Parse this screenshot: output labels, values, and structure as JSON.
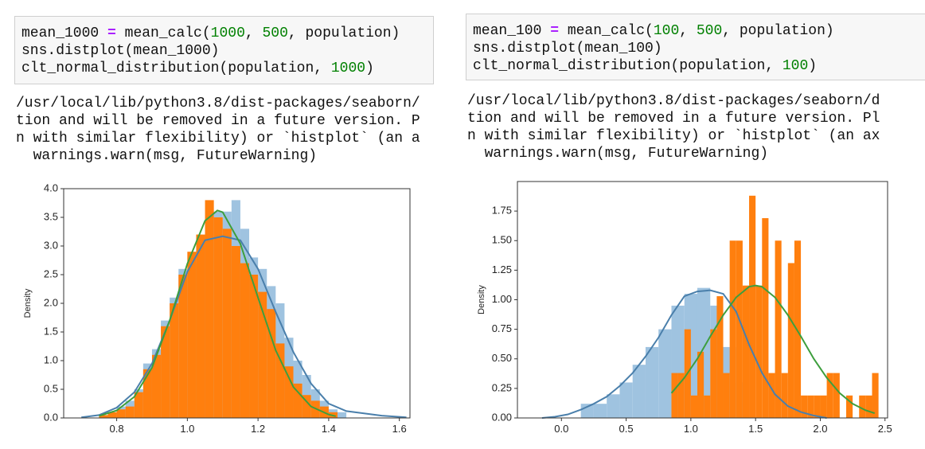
{
  "cells": [
    {
      "code": [
        [
          "mean_1000 ",
          "=",
          " mean_calc(",
          "1000",
          ", ",
          "500",
          ", population)"
        ],
        [
          "sns.distplot(mean_1000)"
        ],
        [
          "clt_normal_distribution(population, ",
          "1000",
          ")"
        ]
      ],
      "output": [
        "/usr/local/lib/python3.8/dist-packages/seaborn/",
        "tion and will be removed in a future version. P",
        "n with similar flexibility) or `histplot` (an a",
        "  warnings.warn(msg, FutureWarning)"
      ]
    },
    {
      "code": [
        [
          "mean_100 ",
          "=",
          " mean_calc(",
          "100",
          ", ",
          "500",
          ", population)"
        ],
        [
          "sns.distplot(mean_100)"
        ],
        [
          "clt_normal_distribution(population, ",
          "100",
          ")"
        ]
      ],
      "output": [
        "/usr/local/lib/python3.8/dist-packages/seaborn/d",
        "tion and will be removed in a future version. Pl",
        "n with similar flexibility) or `histplot` (an ax",
        "  warnings.warn(msg, FutureWarning)"
      ]
    }
  ],
  "chart_data": [
    {
      "type": "histogram",
      "ylabel": "Density",
      "xlim": [
        0.65,
        1.63
      ],
      "ylim": [
        0,
        4.0
      ],
      "xticks": [
        0.8,
        {
          "value": 1.0,
          "label": "1.0"
        },
        1.2,
        1.4,
        1.6
      ],
      "yticks": [
        {
          "value": 0,
          "label": "0.0"
        },
        0.5,
        {
          "value": 1.0,
          "label": "1.0"
        },
        1.5,
        {
          "value": 2.0,
          "label": "2.0"
        },
        2.5,
        {
          "value": 3.0,
          "label": "3.0"
        },
        3.5,
        {
          "value": 4.0,
          "label": "4.0"
        }
      ],
      "series": [
        {
          "color": "#9fc3e0",
          "bins": [
            0.75,
            0.775,
            0.8,
            0.825,
            0.85,
            0.875,
            0.9,
            0.925,
            0.95,
            0.975,
            1.0,
            1.025,
            1.05,
            1.075,
            1.1,
            1.125,
            1.15,
            1.175,
            1.2,
            1.225,
            1.25,
            1.275,
            1.3,
            1.325,
            1.35,
            1.375,
            1.4,
            1.425,
            1.45
          ],
          "values": [
            0.05,
            0.1,
            0.2,
            0.3,
            0.5,
            0.95,
            1.2,
            1.7,
            2.1,
            2.6,
            2.7,
            3.1,
            3.5,
            3.6,
            3.6,
            3.8,
            3.3,
            2.8,
            2.6,
            2.3,
            2.0,
            1.4,
            1.0,
            0.75,
            0.5,
            0.3,
            0.15,
            0.1
          ]
        },
        {
          "color": "#ff7f0e",
          "bins": [
            0.75,
            0.775,
            0.8,
            0.825,
            0.85,
            0.875,
            0.9,
            0.925,
            0.95,
            0.975,
            1.0,
            1.025,
            1.05,
            1.075,
            1.1,
            1.125,
            1.15,
            1.175,
            1.2,
            1.225,
            1.25,
            1.275,
            1.3,
            1.325,
            1.35,
            1.375,
            1.4,
            1.425
          ],
          "values": [
            0.05,
            0.1,
            0.15,
            0.2,
            0.45,
            0.85,
            1.1,
            1.6,
            2.0,
            2.5,
            2.9,
            3.2,
            3.8,
            3.5,
            3.3,
            3.0,
            2.7,
            2.5,
            2.2,
            1.9,
            1.3,
            0.9,
            0.6,
            0.4,
            0.3,
            0.2,
            0.1
          ]
        }
      ],
      "lines": [
        {
          "color": "#4a7fab",
          "x": [
            0.7,
            0.75,
            0.8,
            0.85,
            0.9,
            0.95,
            1.0,
            1.05,
            1.1,
            1.15,
            1.2,
            1.25,
            1.3,
            1.35,
            1.4,
            1.45,
            1.5,
            1.55,
            1.62
          ],
          "values": [
            0.01,
            0.05,
            0.18,
            0.45,
            0.95,
            1.7,
            2.55,
            3.1,
            3.17,
            3.1,
            2.6,
            1.85,
            1.15,
            0.6,
            0.25,
            0.12,
            0.08,
            0.04,
            0.01
          ]
        },
        {
          "color": "#3d9e3d",
          "x": [
            0.75,
            0.8,
            0.85,
            0.9,
            0.95,
            1.0,
            1.05,
            1.085,
            1.1,
            1.15,
            1.2,
            1.25,
            1.3,
            1.35,
            1.4,
            1.42
          ],
          "values": [
            0.035,
            0.13,
            0.37,
            0.88,
            1.7,
            2.69,
            3.44,
            3.62,
            3.59,
            3.04,
            2.1,
            1.18,
            0.54,
            0.2,
            0.06,
            0.03
          ]
        }
      ]
    },
    {
      "type": "histogram",
      "ylabel": "Density",
      "xlim": [
        -0.34,
        2.52
      ],
      "ylim": [
        0,
        2.0
      ],
      "xticks": [
        {
          "value": 0,
          "label": "0.0"
        },
        0.5,
        {
          "value": 1.0,
          "label": "1.0"
        },
        1.5,
        {
          "value": 2.0,
          "label": "2.0"
        },
        2.5
      ],
      "yticks": [
        {
          "value": 0,
          "label": "0.00"
        },
        0.25,
        {
          "value": 0.5,
          "label": "0.50"
        },
        0.75,
        {
          "value": 1.0,
          "label": "1.00"
        },
        1.25,
        {
          "value": 1.5,
          "label": "1.50"
        },
        1.75
      ],
      "series": [
        {
          "color": "#9fc3e0",
          "bins": [
            0.15,
            0.25,
            0.35,
            0.45,
            0.55,
            0.65,
            0.75,
            0.85,
            0.95,
            1.05,
            1.15,
            1.25,
            1.35,
            1.45
          ],
          "values": [
            0.12,
            0.12,
            0.2,
            0.3,
            0.45,
            0.6,
            0.75,
            0.95,
            1.05,
            1.1,
            0.95,
            0.6,
            0.3
          ]
        },
        {
          "color": "#ff7f0e",
          "bins": [
            0.85,
            0.9,
            0.95,
            1.0,
            1.05,
            1.1,
            1.15,
            1.2,
            1.25,
            1.3,
            1.35,
            1.4,
            1.45,
            1.5,
            1.55,
            1.6,
            1.65,
            1.7,
            1.75,
            1.8,
            1.85,
            1.9,
            1.95,
            2.0,
            2.05,
            2.1,
            2.15,
            2.2,
            2.25,
            2.3,
            2.35,
            2.4,
            2.45
          ],
          "values": [
            0.38,
            0.38,
            0.75,
            0.19,
            0.56,
            0.19,
            0.75,
            1.03,
            0.38,
            1.5,
            1.5,
            1.12,
            1.88,
            1.12,
            1.69,
            0.38,
            1.5,
            0.38,
            1.31,
            1.5,
            0.19,
            0.19,
            0.19,
            0.19,
            0.38,
            0.38,
            0,
            0.19,
            0,
            0.19,
            0.19,
            0.38
          ]
        }
      ],
      "lines": [
        {
          "color": "#4a7fab",
          "x": [
            -0.15,
            -0.05,
            0.05,
            0.15,
            0.25,
            0.35,
            0.45,
            0.55,
            0.65,
            0.75,
            0.85,
            0.95,
            1.05,
            1.15,
            1.25,
            1.35,
            1.45,
            1.55,
            1.65,
            1.75,
            1.85,
            1.95,
            2.05
          ],
          "values": [
            0,
            0.01,
            0.03,
            0.07,
            0.12,
            0.18,
            0.27,
            0.38,
            0.52,
            0.68,
            0.87,
            1.03,
            1.07,
            1.08,
            1.05,
            0.9,
            0.62,
            0.38,
            0.2,
            0.1,
            0.05,
            0.02,
            0
          ]
        },
        {
          "color": "#3d9e3d",
          "x": [
            0.85,
            0.95,
            1.05,
            1.15,
            1.25,
            1.35,
            1.45,
            1.5,
            1.55,
            1.65,
            1.75,
            1.85,
            1.95,
            2.05,
            2.15,
            2.25,
            2.35,
            2.42
          ],
          "values": [
            0.21,
            0.34,
            0.5,
            0.69,
            0.87,
            1.02,
            1.11,
            1.12,
            1.11,
            1.02,
            0.87,
            0.69,
            0.5,
            0.34,
            0.21,
            0.12,
            0.065,
            0.04
          ]
        }
      ]
    }
  ]
}
